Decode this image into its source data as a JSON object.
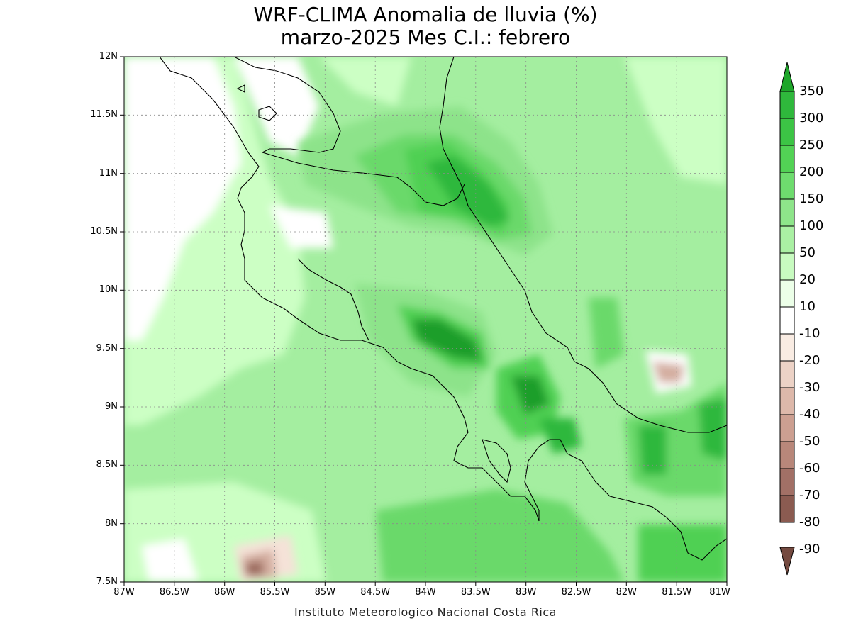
{
  "title": {
    "line1": "WRF-CLIMA Anomalia de lluvia (%)",
    "line2": "marzo-2025 Mes C.I.: febrero"
  },
  "credit": "Instituto Meteorologico Nacional Costa Rica",
  "map": {
    "lon_range": [
      -87,
      -81
    ],
    "lat_range": [
      7.5,
      12
    ],
    "grid": true,
    "y_ticks": [
      "12N",
      "11.5N",
      "11N",
      "10.5N",
      "10N",
      "9.5N",
      "9N",
      "8.5N",
      "8N",
      "7.5N"
    ],
    "x_ticks": [
      "87W",
      "86.5W",
      "86W",
      "85.5W",
      "85W",
      "84.5W",
      "84W",
      "83.5W",
      "83W",
      "82.5W",
      "82W",
      "81.5W",
      "81W"
    ],
    "colors": {
      "base_anomaly": "#a4eea0",
      "light": "#ccffc4",
      "white": "#ffffff",
      "moderate": "#8de38a",
      "strong": "#6ad96b",
      "stronger": "#4fd052",
      "strongest": "#2fb83c",
      "peak": "#1e9e2a",
      "brown_light": "#f5e2d8",
      "brown_mid": "#d4aea0",
      "brown_dark": "#9b6b5d"
    }
  },
  "colorbar": {
    "labels": [
      "350",
      "300",
      "250",
      "200",
      "150",
      "100",
      "50",
      "20",
      "10",
      "-10",
      "-20",
      "-30",
      "-40",
      "-50",
      "-60",
      "-70",
      "-80",
      "-90"
    ],
    "colors": [
      "#1ea62a",
      "#2fb83c",
      "#3cc445",
      "#52d255",
      "#6edc6e",
      "#8ee58a",
      "#aaf0a3",
      "#c8fbc0",
      "#ecffe8",
      "#ffffff",
      "#f9ece3",
      "#ecd2c6",
      "#ddb8aa",
      "#cc9f91",
      "#b8877a",
      "#a27066",
      "#8b5b51",
      "#744a40"
    ]
  }
}
